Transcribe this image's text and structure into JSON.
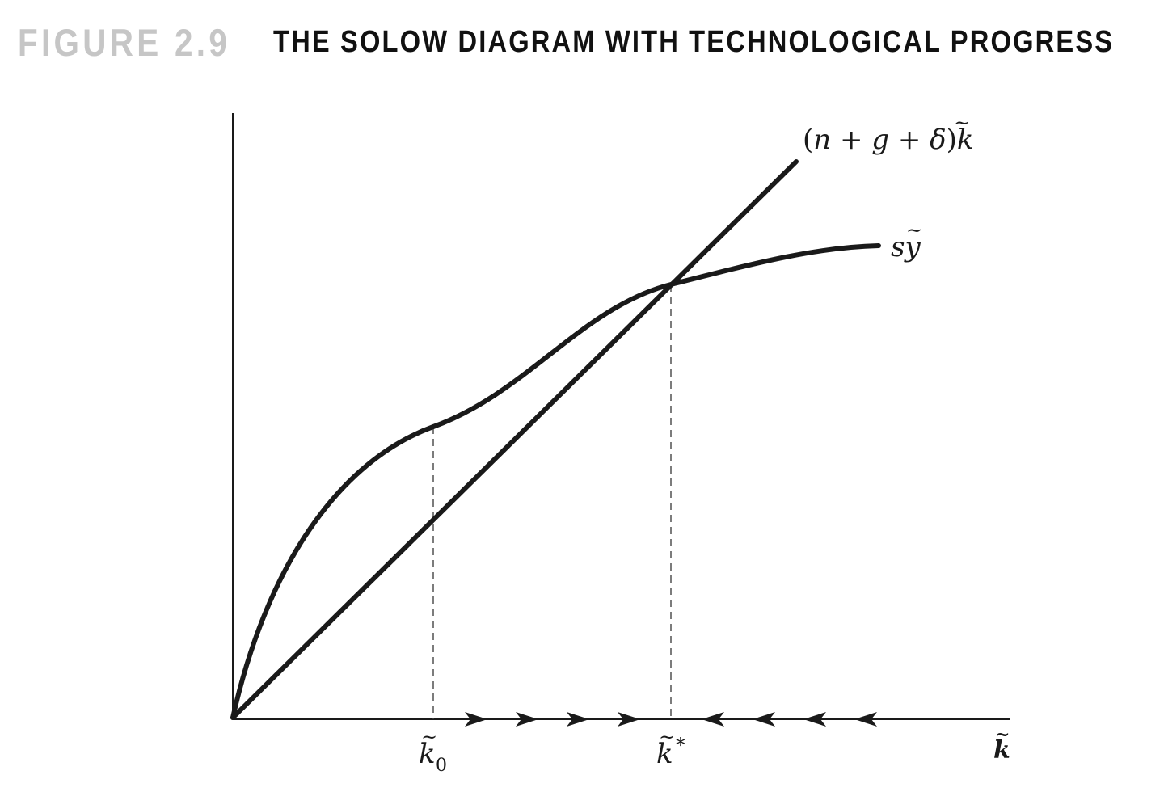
{
  "figure": {
    "number": "FIGURE 2.9",
    "title": "THE SOLOW DIAGRAM WITH TECHNOLOGICAL PROGRESS"
  },
  "diagram": {
    "line_label": {
      "open": "(",
      "n": "n",
      "plus1": " + ",
      "g": "g",
      "plus2": " + ",
      "delta": "δ",
      "close": ")",
      "k": "k",
      "tilde": "~"
    },
    "curve_label": {
      "s": "s",
      "y": "y",
      "tilde": "~"
    },
    "k0_label": {
      "k": "k",
      "sub": "0",
      "tilde": "~"
    },
    "kstar_label": {
      "k": "k",
      "sup": "*",
      "tilde": "~"
    },
    "x_axis_label": {
      "k": "k",
      "tilde": "~"
    },
    "arrows_right": 4,
    "arrows_left": 4
  },
  "colors": {
    "ink": "#1a1a1a",
    "figure_number": "#c6c6c6"
  }
}
